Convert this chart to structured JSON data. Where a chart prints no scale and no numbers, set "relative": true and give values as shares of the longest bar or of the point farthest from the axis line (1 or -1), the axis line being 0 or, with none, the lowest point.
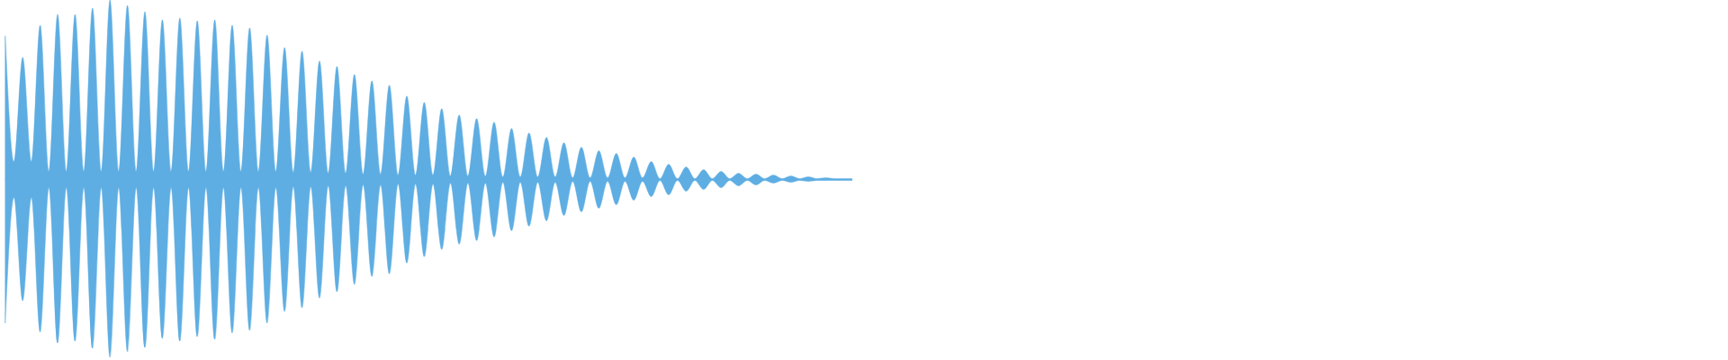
{
  "chart_data": {
    "type": "area",
    "relative": true,
    "categories": [
      null,
      null,
      null,
      null,
      null,
      null,
      null,
      null,
      null,
      null,
      null,
      null,
      null,
      null,
      null,
      null,
      null,
      null,
      null,
      null,
      null,
      null,
      null,
      null,
      null,
      null,
      null,
      null,
      null,
      null,
      null,
      null,
      null,
      null,
      null,
      null,
      null,
      null,
      null,
      null,
      null,
      null,
      null,
      null,
      null,
      null,
      null,
      null,
      null,
      null,
      null,
      null,
      null,
      null,
      null,
      null,
      null,
      null,
      null,
      null,
      null,
      null,
      null,
      null,
      null,
      null,
      null,
      null,
      null,
      null,
      null,
      null,
      null,
      null,
      null,
      null,
      null,
      null,
      null,
      null,
      null,
      null,
      null,
      null,
      null,
      null,
      null,
      null,
      null,
      null,
      null,
      null,
      null,
      null,
      null,
      null,
      null,
      null
    ],
    "series": [
      {
        "color": "#5dade2",
        "values": [
          0.8,
          0.1,
          0.68,
          0.1,
          0.86,
          0.045,
          0.92,
          0.045,
          0.92,
          0.045,
          0.955,
          0.045,
          1,
          0.045,
          0.97,
          0.045,
          0.935,
          0.045,
          0.89,
          0.045,
          0.9,
          0.045,
          0.885,
          0.045,
          0.89,
          0.045,
          0.86,
          0.045,
          0.845,
          0.045,
          0.805,
          0.045,
          0.735,
          0.04,
          0.715,
          0.04,
          0.66,
          0.035,
          0.63,
          0.035,
          0.585,
          0.03,
          0.55,
          0.03,
          0.525,
          0.025,
          0.465,
          0.025,
          0.43,
          0.025,
          0.395,
          0.02,
          0.36,
          0.02,
          0.34,
          0.02,
          0.32,
          0.015,
          0.285,
          0.015,
          0.26,
          0.015,
          0.235,
          0.015,
          0.205,
          0.01,
          0.18,
          0.01,
          0.16,
          0.01,
          0.145,
          0.01,
          0.125,
          0.01,
          0.1,
          0.005,
          0.085,
          0.005,
          0.07,
          0.005,
          0.055,
          0.005,
          0.045,
          0.005,
          0.035,
          0.005,
          0.03,
          0.005,
          0.025,
          0.005,
          0.02,
          0.005,
          0.015,
          0.005,
          0.01,
          0.005,
          0.005,
          0.005
        ]
      },
      {
        "color": "#5eaee3",
        "values": [
          -0.8,
          -0.1,
          -0.675,
          -0.1,
          -0.85,
          -0.045,
          -0.91,
          -0.045,
          -0.9,
          -0.045,
          -0.94,
          -0.045,
          -0.99,
          -0.045,
          -0.96,
          -0.045,
          -0.935,
          -0.045,
          -0.885,
          -0.045,
          -0.9,
          -0.045,
          -0.875,
          -0.045,
          -0.89,
          -0.045,
          -0.855,
          -0.045,
          -0.84,
          -0.045,
          -0.8,
          -0.045,
          -0.735,
          -0.04,
          -0.715,
          -0.04,
          -0.66,
          -0.035,
          -0.625,
          -0.035,
          -0.585,
          -0.03,
          -0.54,
          -0.03,
          -0.525,
          -0.025,
          -0.465,
          -0.025,
          -0.43,
          -0.025,
          -0.39,
          -0.02,
          -0.36,
          -0.02,
          -0.34,
          -0.02,
          -0.32,
          -0.015,
          -0.285,
          -0.015,
          -0.26,
          -0.015,
          -0.23,
          -0.015,
          -0.2,
          -0.01,
          -0.18,
          -0.01,
          -0.16,
          -0.01,
          -0.14,
          -0.01,
          -0.115,
          -0.01,
          -0.095,
          -0.005,
          -0.085,
          -0.005,
          -0.065,
          -0.005,
          -0.055,
          -0.005,
          -0.045,
          -0.005,
          -0.035,
          -0.005,
          -0.03,
          -0.005,
          -0.02,
          -0.005,
          -0.015,
          -0.005,
          -0.01,
          -0.005,
          -0.005,
          -0.005,
          -0.005,
          -0.005
        ]
      }
    ],
    "ref_lines": [
      {
        "axis": "y",
        "value": 0,
        "color": "#5dade2"
      }
    ]
  }
}
